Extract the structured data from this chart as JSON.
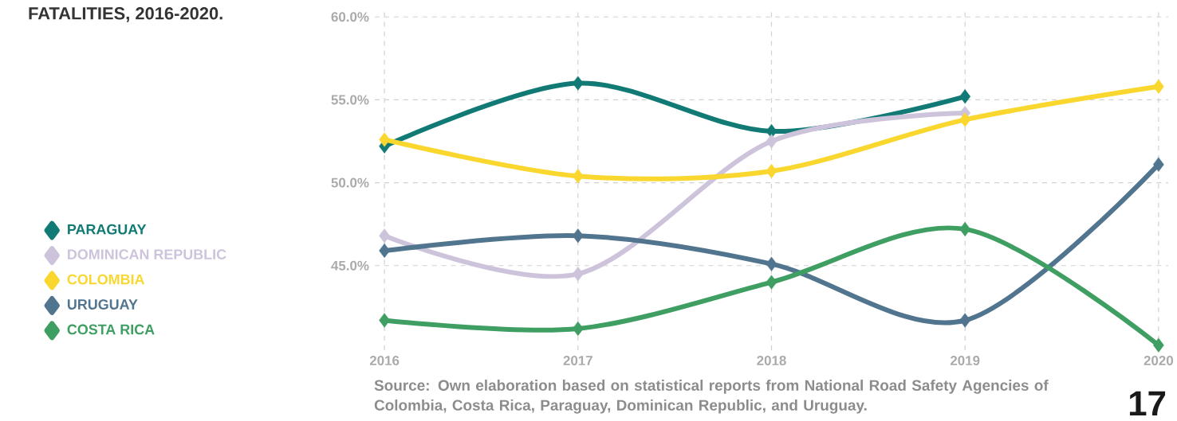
{
  "chart_data": {
    "type": "line",
    "title": "FATALITIES, 2016-2020.",
    "x": [
      2016,
      2017,
      2018,
      2019,
      2020
    ],
    "series": [
      {
        "name": "PARAGUAY",
        "color": "#117a75",
        "values": [
          52.2,
          56.0,
          53.1,
          55.2,
          null
        ]
      },
      {
        "name": "DOMINICAN REPUBLIC",
        "color": "#cdc3db",
        "values": [
          46.8,
          44.5,
          52.5,
          54.2,
          null
        ]
      },
      {
        "name": "COLOMBIA",
        "color": "#f9d72f",
        "values": [
          52.6,
          50.4,
          50.7,
          53.8,
          55.8
        ]
      },
      {
        "name": "URUGUAY",
        "color": "#52758f",
        "values": [
          45.9,
          46.8,
          45.1,
          41.7,
          51.1
        ]
      },
      {
        "name": "COSTA RICA",
        "color": "#3f9e62",
        "values": [
          41.7,
          41.2,
          44.0,
          47.2,
          40.2
        ]
      }
    ],
    "xlim": [
      2015.95,
      2020.05
    ],
    "ylim": [
      39.9,
      60.3
    ],
    "xticks": [
      2016,
      2017,
      2018,
      2019,
      2020
    ],
    "yticks": [
      {
        "value": 45,
        "label": "45.0%"
      },
      {
        "value": 50,
        "label": "50.0%"
      },
      {
        "value": 55,
        "label": "55.0%"
      },
      {
        "value": 60,
        "label": "60.0%"
      }
    ],
    "grid": true,
    "legend": "left",
    "marker": "diamond",
    "line_style": "solid",
    "annotations": [
      "Source:  Own elaboration based on statistical reports from National Road Safety Agencies of Colombia, Costa Rica, Paraguay, Dominican Republic, and Uruguay.",
      "17"
    ]
  }
}
